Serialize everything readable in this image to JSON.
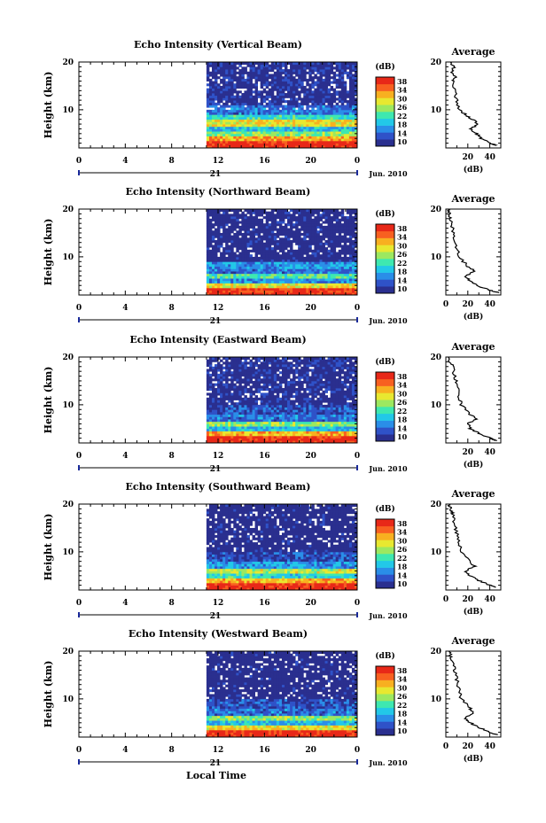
{
  "figure": {
    "x_axis_label": "Local Time",
    "date_label": "Jun. 2010",
    "day_label": "21",
    "y_axis_label": "Height (km)"
  },
  "colorbar": {
    "unit_label": "(dB)",
    "ticks": [
      "38",
      "34",
      "30",
      "26",
      "22",
      "18",
      "14",
      "10"
    ],
    "range": [
      10,
      40
    ],
    "colors": [
      "#2a2f8f",
      "#2f52c8",
      "#2a8ee8",
      "#22c8e8",
      "#3ee8b0",
      "#9ce860",
      "#e8e830",
      "#f8b020",
      "#f86020",
      "#e82818"
    ]
  },
  "chart_data": [
    {
      "type": "heatmap",
      "title": "Echo Intensity (Vertical Beam)",
      "xlabel": "Local Time",
      "ylabel": "Height (km)",
      "xlim": [
        0,
        24
      ],
      "ylim": [
        2,
        20
      ],
      "x_ticks": [
        "0",
        "4",
        "8",
        "12",
        "16",
        "20",
        "0"
      ],
      "y_ticks": [
        "20",
        "10"
      ],
      "data_start_hour": 11,
      "layers_db": [
        {
          "height_km": [
            2,
            3.5
          ],
          "db": 39
        },
        {
          "height_km": [
            3.5,
            4.5
          ],
          "db": 33
        },
        {
          "height_km": [
            4.5,
            5.5
          ],
          "db": 26
        },
        {
          "height_km": [
            5.5,
            6.5
          ],
          "db": 20
        },
        {
          "height_km": [
            6.5,
            8
          ],
          "db": 30
        },
        {
          "height_km": [
            8,
            9
          ],
          "db": 22
        },
        {
          "height_km": [
            9,
            11
          ],
          "db": 16
        },
        {
          "height_km": [
            11,
            20
          ],
          "db": 11
        }
      ],
      "profile": {
        "title": "Average",
        "xlabel": "(dB)",
        "x_ticks": [
          "20",
          "40"
        ],
        "y_ticks": [
          "20",
          "10"
        ],
        "xlim": [
          0,
          50
        ],
        "ylim": [
          2,
          20
        ],
        "height_km": [
          2.5,
          3,
          4,
          5,
          6,
          7,
          8,
          9,
          10,
          12,
          14,
          16,
          17,
          18,
          19,
          20
        ],
        "db": [
          46,
          40,
          32,
          28,
          22,
          30,
          24,
          18,
          12,
          10,
          8,
          6,
          9,
          5,
          8,
          4
        ]
      }
    },
    {
      "type": "heatmap",
      "title": "Echo Intensity (Northward Beam)",
      "xlabel": "Local Time",
      "ylabel": "Height (km)",
      "xlim": [
        0,
        24
      ],
      "ylim": [
        2,
        20
      ],
      "x_ticks": [
        "0",
        "4",
        "8",
        "12",
        "16",
        "20",
        "0"
      ],
      "y_ticks": [
        "20",
        "10"
      ],
      "data_start_hour": 11,
      "layers_db": [
        {
          "height_km": [
            2,
            3.5
          ],
          "db": 38
        },
        {
          "height_km": [
            3.5,
            4.5
          ],
          "db": 30
        },
        {
          "height_km": [
            4.5,
            5.5
          ],
          "db": 18
        },
        {
          "height_km": [
            5.5,
            6.5
          ],
          "db": 24
        },
        {
          "height_km": [
            6.5,
            7.5
          ],
          "db": 16
        },
        {
          "height_km": [
            7.5,
            9
          ],
          "db": 18
        },
        {
          "height_km": [
            9,
            20
          ],
          "db": 10
        }
      ],
      "profile": {
        "title": "Average",
        "xlabel": "(dB)",
        "x_ticks": [
          "0",
          "20",
          "40"
        ],
        "y_ticks": [
          "20",
          "10"
        ],
        "xlim": [
          0,
          50
        ],
        "ylim": [
          2,
          20
        ],
        "height_km": [
          2.5,
          3,
          4,
          5,
          6,
          7,
          8,
          10,
          12,
          14,
          16,
          18,
          19,
          20
        ],
        "db": [
          48,
          40,
          28,
          22,
          18,
          26,
          20,
          12,
          10,
          8,
          6,
          4,
          3,
          2
        ]
      }
    },
    {
      "type": "heatmap",
      "title": "Echo Intensity (Eastward Beam)",
      "xlabel": "Local Time",
      "ylabel": "Height (km)",
      "xlim": [
        0,
        24
      ],
      "ylim": [
        2,
        20
      ],
      "x_ticks": [
        "0",
        "4",
        "8",
        "12",
        "16",
        "20",
        "0"
      ],
      "y_ticks": [
        "20",
        "10"
      ],
      "data_start_hour": 11,
      "layers_db": [
        {
          "height_km": [
            2,
            3.5
          ],
          "db": 39
        },
        {
          "height_km": [
            3.5,
            4.5
          ],
          "db": 32
        },
        {
          "height_km": [
            4.5,
            5.5
          ],
          "db": 20
        },
        {
          "height_km": [
            5.5,
            6.5
          ],
          "db": 26
        },
        {
          "height_km": [
            6.5,
            8
          ],
          "db": 16
        },
        {
          "height_km": [
            8,
            10
          ],
          "db": 14
        },
        {
          "height_km": [
            10,
            20
          ],
          "db": 11
        }
      ],
      "profile": {
        "title": "Average",
        "xlabel": "(dB)",
        "x_ticks": [
          "20",
          "40"
        ],
        "y_ticks": [
          "20",
          "10"
        ],
        "xlim": [
          0,
          50
        ],
        "ylim": [
          2,
          20
        ],
        "height_km": [
          2.5,
          3,
          4,
          5,
          6,
          7,
          8,
          10,
          12,
          14,
          16,
          18,
          19,
          20
        ],
        "db": [
          46,
          40,
          30,
          22,
          20,
          28,
          22,
          14,
          12,
          10,
          8,
          6,
          4,
          3
        ]
      }
    },
    {
      "type": "heatmap",
      "title": "Echo Intensity (Southward Beam)",
      "xlabel": "Local Time",
      "ylabel": "Height (km)",
      "xlim": [
        0,
        24
      ],
      "ylim": [
        2,
        20
      ],
      "x_ticks": [
        "0",
        "4",
        "8",
        "12",
        "16",
        "20",
        "0"
      ],
      "y_ticks": [
        "20",
        "10"
      ],
      "data_start_hour": 11,
      "layers_db": [
        {
          "height_km": [
            2,
            3.5
          ],
          "db": 39
        },
        {
          "height_km": [
            3.5,
            4.5
          ],
          "db": 32
        },
        {
          "height_km": [
            4.5,
            5.5
          ],
          "db": 22
        },
        {
          "height_km": [
            5.5,
            6.5
          ],
          "db": 28
        },
        {
          "height_km": [
            6.5,
            8
          ],
          "db": 18
        },
        {
          "height_km": [
            8,
            10
          ],
          "db": 14
        },
        {
          "height_km": [
            10,
            20
          ],
          "db": 10
        }
      ],
      "profile": {
        "title": "Average",
        "xlabel": "(dB)",
        "x_ticks": [
          "0",
          "20",
          "40"
        ],
        "y_ticks": [
          "20",
          "10"
        ],
        "xlim": [
          0,
          50
        ],
        "ylim": [
          2,
          20
        ],
        "height_km": [
          2.5,
          3,
          4,
          5,
          6,
          7,
          8,
          10,
          12,
          14,
          16,
          18,
          19,
          20
        ],
        "db": [
          46,
          40,
          30,
          22,
          18,
          26,
          22,
          14,
          12,
          10,
          8,
          6,
          4,
          3
        ]
      }
    },
    {
      "type": "heatmap",
      "title": "Echo Intensity (Westward Beam)",
      "xlabel": "Local Time",
      "ylabel": "Height (km)",
      "xlim": [
        0,
        24
      ],
      "ylim": [
        2,
        20
      ],
      "x_ticks": [
        "0",
        "4",
        "8",
        "12",
        "16",
        "20",
        "0"
      ],
      "y_ticks": [
        "20",
        "10"
      ],
      "data_start_hour": 11,
      "layers_db": [
        {
          "height_km": [
            2,
            3.5
          ],
          "db": 39
        },
        {
          "height_km": [
            3.5,
            4.5
          ],
          "db": 30
        },
        {
          "height_km": [
            4.5,
            5.5
          ],
          "db": 20
        },
        {
          "height_km": [
            5.5,
            6.5
          ],
          "db": 26
        },
        {
          "height_km": [
            6.5,
            8
          ],
          "db": 16
        },
        {
          "height_km": [
            8,
            10
          ],
          "db": 14
        },
        {
          "height_km": [
            10,
            20
          ],
          "db": 10
        }
      ],
      "profile": {
        "title": "Average",
        "xlabel": "(dB)",
        "x_ticks": [
          "0",
          "20",
          "40"
        ],
        "y_ticks": [
          "20",
          "10"
        ],
        "xlim": [
          0,
          50
        ],
        "ylim": [
          2,
          20
        ],
        "height_km": [
          2.5,
          3,
          4,
          5,
          6,
          7,
          8,
          10,
          12,
          14,
          16,
          18,
          19,
          20
        ],
        "db": [
          46,
          40,
          30,
          22,
          18,
          26,
          22,
          14,
          12,
          10,
          8,
          6,
          4,
          3
        ]
      }
    }
  ]
}
